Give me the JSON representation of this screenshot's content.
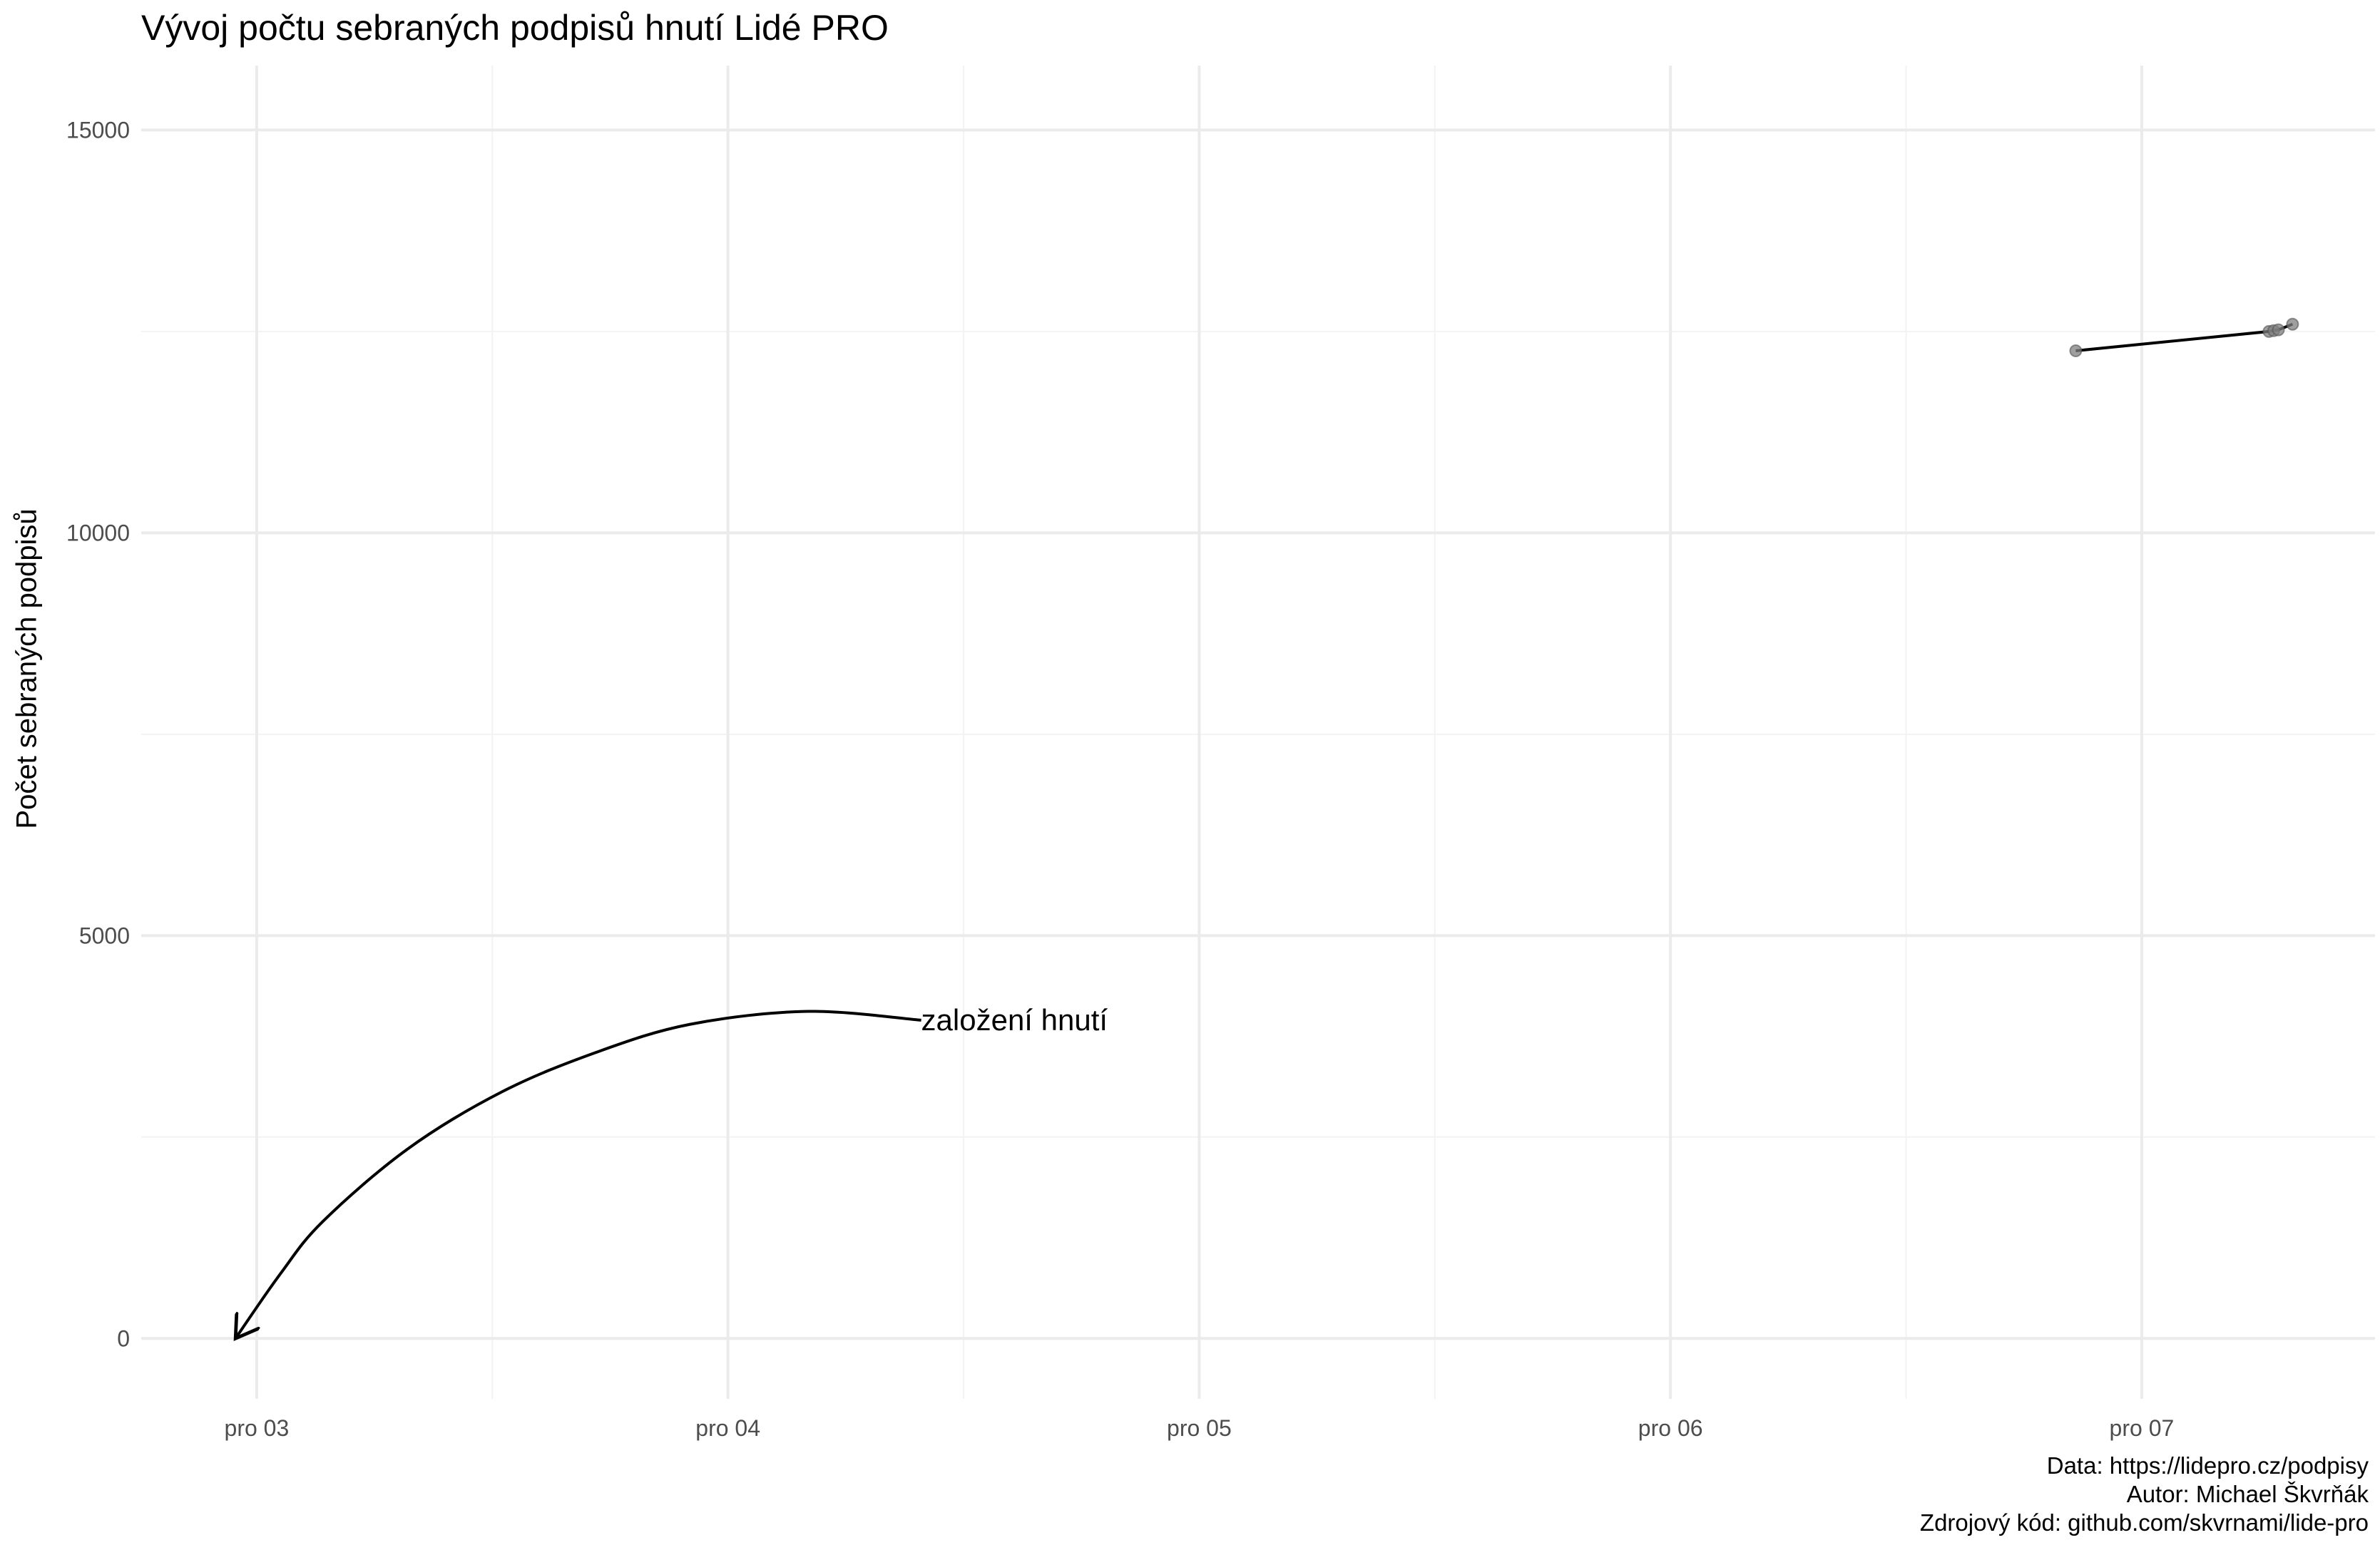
{
  "chart_data": {
    "type": "line",
    "title": "Vývoj počtu sebraných podpisů hnutí Lidé PRO",
    "xlabel": "",
    "ylabel": "Počet sebraných podpisů",
    "x_ticks": [
      {
        "label": "pro 03",
        "value": 3
      },
      {
        "label": "pro 04",
        "value": 4
      },
      {
        "label": "pro 05",
        "value": 5
      },
      {
        "label": "pro 06",
        "value": 6
      },
      {
        "label": "pro 07",
        "value": 7
      }
    ],
    "xlim": [
      2.755,
      7.495
    ],
    "y_ticks": [
      0,
      5000,
      10000,
      15000
    ],
    "y_minor": [
      2500,
      7500,
      12500
    ],
    "ylim": [
      -750,
      15800
    ],
    "grid": true,
    "legend": "none",
    "series": [
      {
        "points": [
          {
            "x": 6.86,
            "y": 12260
          },
          {
            "x": 7.27,
            "y": 12500
          },
          {
            "x": 7.28,
            "y": 12510
          },
          {
            "x": 7.29,
            "y": 12520
          },
          {
            "x": 7.32,
            "y": 12590
          }
        ]
      }
    ],
    "annotation": {
      "text": "založení hnutí",
      "text_x": 4.41,
      "text_y": 3950,
      "arrow_to_x": 2.955,
      "arrow_to_y": 0,
      "curve": [
        {
          "x": 4.41,
          "y": 3950
        },
        {
          "x": 4.17,
          "y": 4060
        },
        {
          "x": 3.92,
          "y": 3900
        },
        {
          "x": 3.72,
          "y": 3550
        },
        {
          "x": 3.52,
          "y": 3060
        },
        {
          "x": 3.32,
          "y": 2350
        },
        {
          "x": 3.14,
          "y": 1450
        },
        {
          "x": 3.05,
          "y": 800
        },
        {
          "x": 2.955,
          "y": 0
        }
      ]
    },
    "colors": {
      "grid_major": "#ebebeb",
      "grid_minor": "#f3f3f3",
      "line": "#000000",
      "point": "#7f7f7f",
      "tick_text": "#4d4d4d"
    }
  },
  "caption": [
    "Data: https://lidepro.cz/podpisy",
    "Autor: Michael Škvrňák",
    "Zdrojový kód: github.com/skvrnami/lide-pro"
  ]
}
